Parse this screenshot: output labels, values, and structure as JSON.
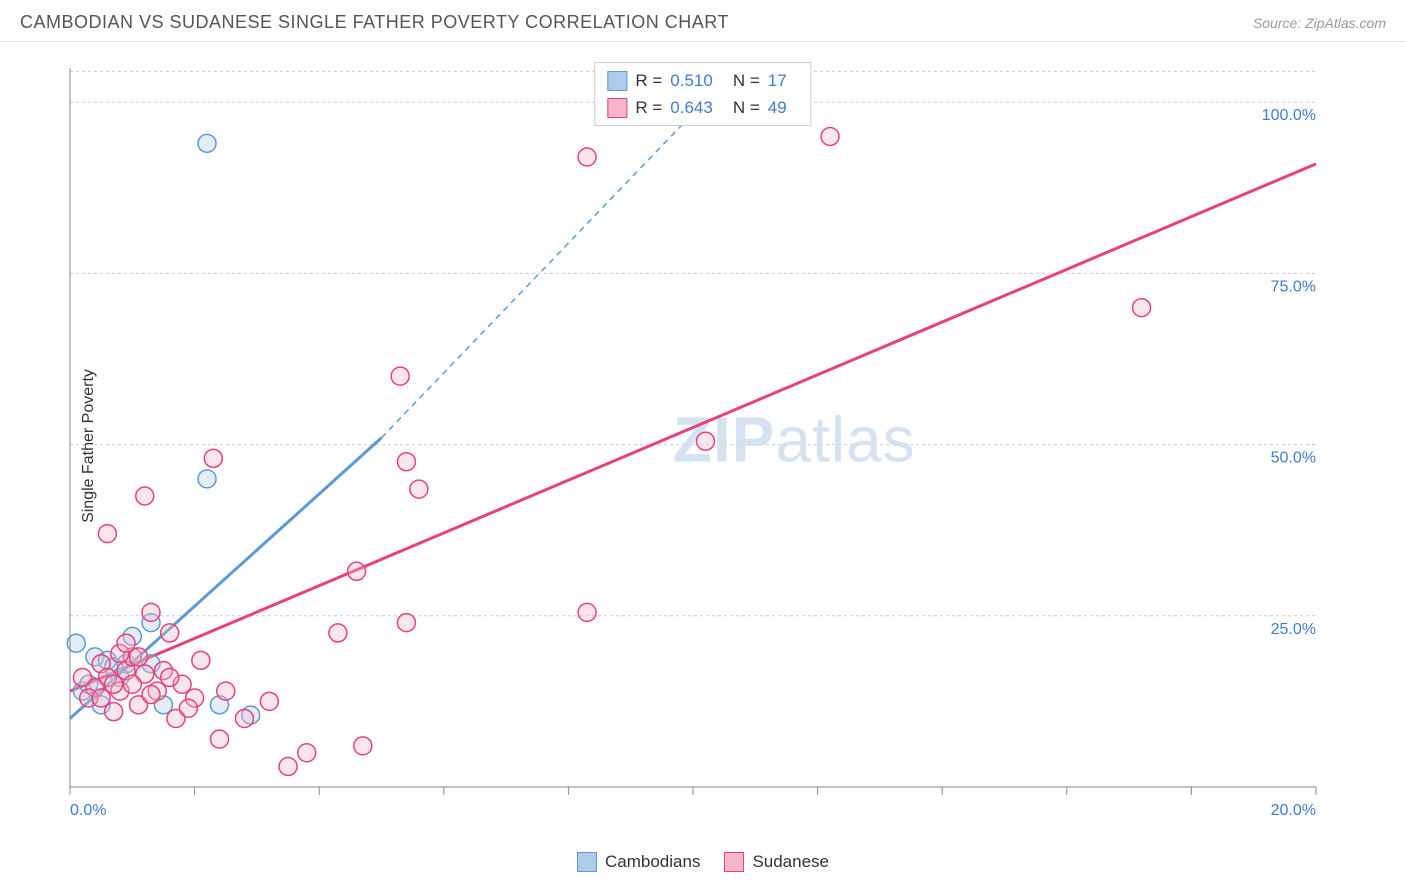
{
  "header": {
    "title": "CAMBODIAN VS SUDANESE SINGLE FATHER POVERTY CORRELATION CHART",
    "source": "Source: ZipAtlas.com"
  },
  "y_axis_label": "Single Father Poverty",
  "chart": {
    "type": "scatter",
    "xlim": [
      0,
      20
    ],
    "ylim": [
      0,
      105
    ],
    "x_ticks": [
      0,
      2,
      4,
      6,
      8,
      10,
      12,
      14,
      16,
      18,
      20
    ],
    "x_tick_labels": {
      "0": "0.0%",
      "20": "20.0%"
    },
    "y_grid": [
      25,
      50,
      75,
      100
    ],
    "y_tick_labels": {
      "25": "25.0%",
      "50": "50.0%",
      "75": "75.0%",
      "100": "100.0%"
    },
    "watermark": {
      "bold": "ZIP",
      "rest": "atlas"
    },
    "background_color": "#ffffff",
    "grid_color": "#cccccc",
    "axis_color": "#888888",
    "marker_radius": 9,
    "marker_stroke_width": 1.5,
    "marker_fill_opacity": 0.35,
    "series": [
      {
        "name": "Cambodians",
        "color": "#5b9bd5",
        "fill": "#aecce9",
        "points": [
          [
            0.1,
            21
          ],
          [
            0.4,
            19
          ],
          [
            0.6,
            18.5
          ],
          [
            0.9,
            18
          ],
          [
            0.2,
            14
          ],
          [
            0.5,
            12
          ],
          [
            0.8,
            16
          ],
          [
            0.7,
            17.5
          ],
          [
            1.0,
            22
          ],
          [
            1.3,
            18
          ],
          [
            1.3,
            24
          ],
          [
            2.4,
            12
          ],
          [
            1.5,
            12
          ],
          [
            2.2,
            94
          ],
          [
            2.2,
            45
          ],
          [
            2.9,
            10.5
          ],
          [
            0.3,
            15
          ]
        ],
        "regression": {
          "x0": 0,
          "y0": 10,
          "x1": 5,
          "y1": 51,
          "dash_x1": 10.7,
          "dash_y1": 105
        }
      },
      {
        "name": "Sudanese",
        "color": "#e8417a",
        "fill": "#f5b6cc",
        "points": [
          [
            0.6,
            37
          ],
          [
            0.5,
            18
          ],
          [
            1.2,
            42.5
          ],
          [
            0.8,
            14
          ],
          [
            1.3,
            25.5
          ],
          [
            0.9,
            17
          ],
          [
            0.6,
            16
          ],
          [
            0.4,
            14.5
          ],
          [
            0.7,
            11
          ],
          [
            1.0,
            19
          ],
          [
            1.6,
            22.5
          ],
          [
            0.3,
            13
          ],
          [
            0.8,
            19.5
          ],
          [
            1.5,
            17
          ],
          [
            1.1,
            12
          ],
          [
            1.8,
            15
          ],
          [
            1.2,
            16.5
          ],
          [
            2.0,
            13
          ],
          [
            1.7,
            10
          ],
          [
            2.3,
            48
          ],
          [
            1.4,
            14
          ],
          [
            1.9,
            11.5
          ],
          [
            2.1,
            18.5
          ],
          [
            2.8,
            10
          ],
          [
            2.5,
            14
          ],
          [
            2.4,
            7
          ],
          [
            3.2,
            12.5
          ],
          [
            3.5,
            3
          ],
          [
            3.8,
            5
          ],
          [
            4.7,
            6
          ],
          [
            4.3,
            22.5
          ],
          [
            4.6,
            31.5
          ],
          [
            5.4,
            24
          ],
          [
            5.4,
            47.5
          ],
          [
            5.3,
            60
          ],
          [
            5.6,
            43.5
          ],
          [
            8.3,
            92
          ],
          [
            8.3,
            25.5
          ],
          [
            10.2,
            50.5
          ],
          [
            12.2,
            95
          ],
          [
            17.2,
            70
          ],
          [
            0.2,
            16
          ],
          [
            0.5,
            13
          ],
          [
            0.9,
            21
          ],
          [
            1.1,
            19
          ],
          [
            0.7,
            15
          ],
          [
            1.3,
            13.5
          ],
          [
            1.6,
            16
          ],
          [
            1.0,
            15
          ]
        ],
        "regression": {
          "x0": 0,
          "y0": 14,
          "x1": 20,
          "y1": 91
        }
      }
    ]
  },
  "stats_legend": {
    "rows": [
      {
        "swatch_fill": "#aecce9",
        "swatch_stroke": "#5b9bd5",
        "r_label": "R =",
        "r": "0.510",
        "n_label": "N =",
        "n": "17"
      },
      {
        "swatch_fill": "#f5b6cc",
        "swatch_stroke": "#e8417a",
        "r_label": "R =",
        "r": "0.643",
        "n_label": "N =",
        "n": "49"
      }
    ]
  },
  "bottom_legend": {
    "items": [
      {
        "swatch_fill": "#aecce9",
        "swatch_stroke": "#5b9bd5",
        "label": "Cambodians"
      },
      {
        "swatch_fill": "#f5b6cc",
        "swatch_stroke": "#e8417a",
        "label": "Sudanese"
      }
    ]
  }
}
